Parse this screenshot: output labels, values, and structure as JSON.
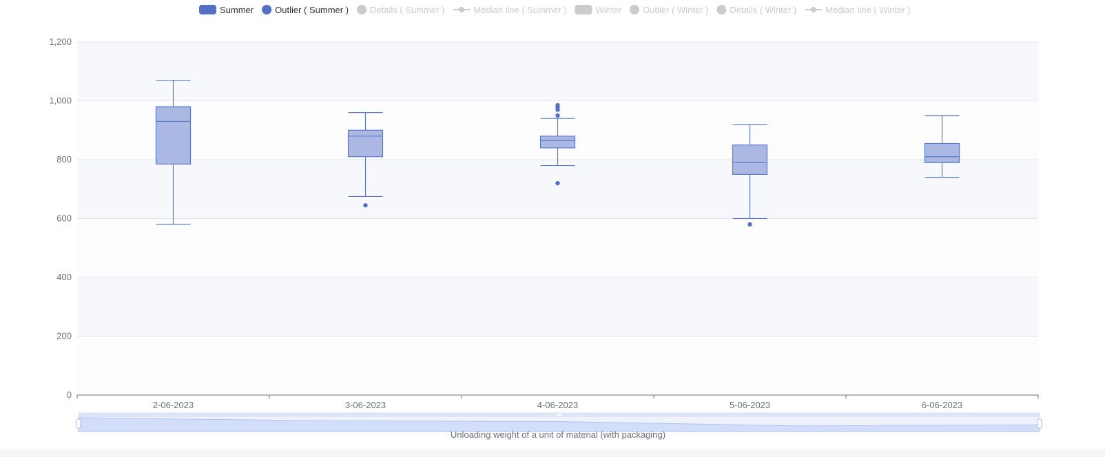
{
  "legend": [
    {
      "label": "Summer",
      "symbol": "box",
      "active": true
    },
    {
      "label": "Outlier ( Summer )",
      "symbol": "circle",
      "active": true
    },
    {
      "label": "Details ( Summer )",
      "symbol": "circle",
      "active": false
    },
    {
      "label": "Median line ( Summer )",
      "symbol": "line",
      "active": false
    },
    {
      "label": "Winter",
      "symbol": "box",
      "active": false
    },
    {
      "label": "Outlier ( Winter )",
      "symbol": "circle",
      "active": false
    },
    {
      "label": "Details ( Winter )",
      "symbol": "circle",
      "active": false
    },
    {
      "label": "Median line ( Winter )",
      "symbol": "line",
      "active": false
    }
  ],
  "colors": {
    "box_fill": "#aab8e3",
    "box_stroke": "#5b7bd0",
    "outlier": "#5470c6",
    "legend_active": "#5470c6",
    "legend_inactive": "#cccccc",
    "axis_text": "#6e7079",
    "grid": "#e0e6f1",
    "band_a": "#f7f8fc",
    "band_b": "#fdfdfe",
    "zoom_fill": "#d3defb",
    "zoom_line": "#aec3f3"
  },
  "chart_data": {
    "type": "boxplot",
    "categories": [
      "2-06-2023",
      "3-06-2023",
      "4-06-2023",
      "5-06-2023",
      "6-06-2023"
    ],
    "xlabel": "Unloading weight of a unit of material (with packaging)",
    "ylim": [
      0,
      1200
    ],
    "yticks": [
      0,
      200,
      400,
      600,
      800,
      1000,
      1200
    ],
    "ytick_labels": [
      "0",
      "200",
      "400",
      "600",
      "800",
      "1,000",
      "1,200"
    ],
    "series": [
      {
        "name": "Summer",
        "boxes": [
          {
            "min": 580,
            "q1": 785,
            "median": 930,
            "q3": 980,
            "max": 1070
          },
          {
            "min": 675,
            "q1": 810,
            "median": 880,
            "q3": 900,
            "max": 960
          },
          {
            "min": 780,
            "q1": 840,
            "median": 865,
            "q3": 880,
            "max": 940
          },
          {
            "min": 600,
            "q1": 750,
            "median": 790,
            "q3": 850,
            "max": 920
          },
          {
            "min": 740,
            "q1": 790,
            "median": 810,
            "q3": 855,
            "max": 950
          }
        ]
      },
      {
        "name": "Outlier ( Summer )",
        "points": [
          {
            "category": "3-06-2023",
            "value": 645
          },
          {
            "category": "4-06-2023",
            "value": 985
          },
          {
            "category": "4-06-2023",
            "value": 978
          },
          {
            "category": "4-06-2023",
            "value": 970
          },
          {
            "category": "4-06-2023",
            "value": 950
          },
          {
            "category": "4-06-2023",
            "value": 720
          },
          {
            "category": "5-06-2023",
            "value": 580
          }
        ]
      }
    ],
    "grid": true,
    "legend_position": "top-center"
  }
}
